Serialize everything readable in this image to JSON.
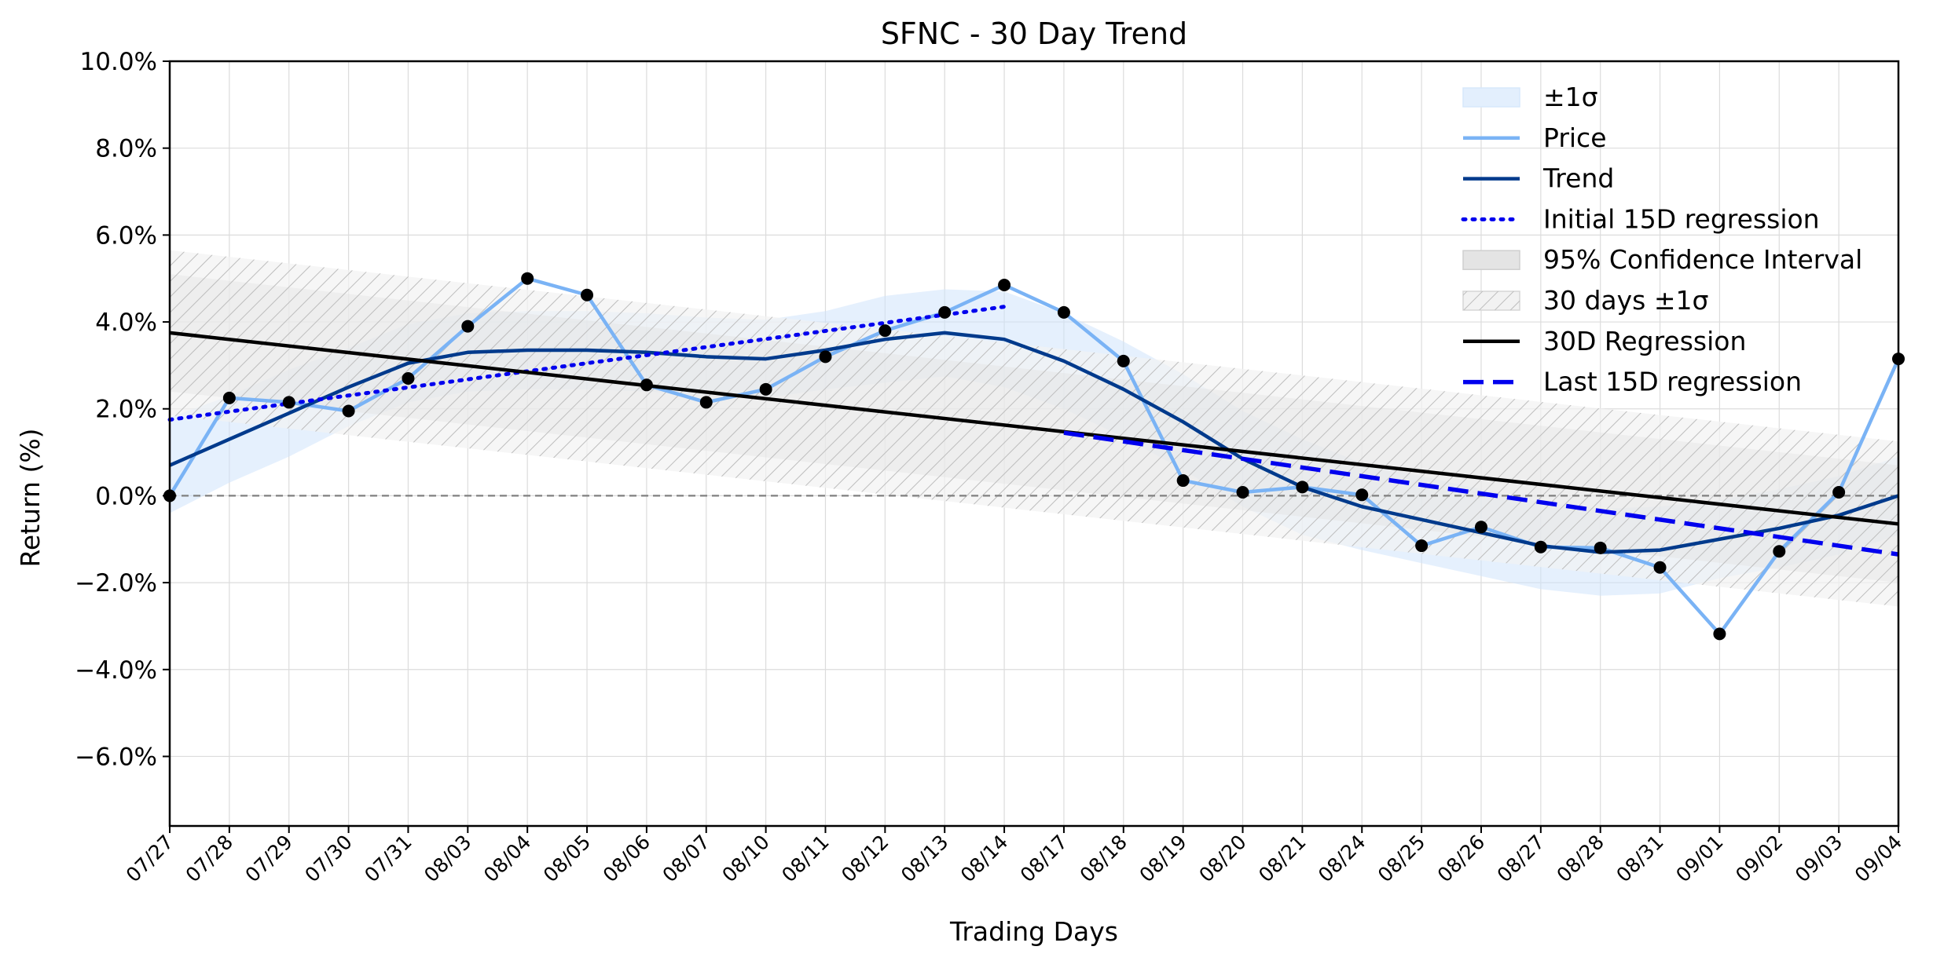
{
  "chart_data": {
    "type": "line",
    "title": "SFNC - 30 Day Trend",
    "xlabel": "Trading Days",
    "ylabel": "Return (%)",
    "ylim": [
      -7.6,
      10.0
    ],
    "grid": true,
    "legend_position": "top-right",
    "categories": [
      "07/27",
      "07/28",
      "07/29",
      "07/30",
      "07/31",
      "08/03",
      "08/04",
      "08/05",
      "08/06",
      "08/07",
      "08/10",
      "08/11",
      "08/12",
      "08/13",
      "08/14",
      "08/17",
      "08/18",
      "08/19",
      "08/20",
      "08/21",
      "08/24",
      "08/25",
      "08/26",
      "08/27",
      "08/28",
      "08/31",
      "09/01",
      "09/02",
      "09/03",
      "09/04"
    ],
    "y_ticks": [
      {
        "value": -6.0,
        "label": "−6.0%"
      },
      {
        "value": -4.0,
        "label": "−4.0%"
      },
      {
        "value": -2.0,
        "label": "−2.0%"
      },
      {
        "value": 0.0,
        "label": "0.0%"
      },
      {
        "value": 2.0,
        "label": "2.0%"
      },
      {
        "value": 4.0,
        "label": "4.0%"
      },
      {
        "value": 6.0,
        "label": "6.0%"
      },
      {
        "value": 8.0,
        "label": "8.0%"
      },
      {
        "value": 10.0,
        "label": "10.0%"
      }
    ],
    "series": [
      {
        "name": "Price",
        "color": "#7ab3f5",
        "style": "solid",
        "values": [
          0.0,
          2.25,
          2.15,
          1.95,
          2.7,
          3.9,
          5.0,
          4.62,
          2.55,
          2.15,
          2.45,
          3.2,
          3.8,
          4.22,
          4.85,
          4.22,
          3.1,
          0.35,
          0.08,
          0.2,
          0.02,
          -1.15,
          -0.72,
          -1.18,
          -1.2,
          -1.65,
          -3.18,
          -1.28,
          0.08,
          3.15
        ]
      },
      {
        "name": "Trend",
        "color": "#003a8c",
        "style": "solid",
        "values": [
          0.7,
          1.3,
          1.9,
          2.5,
          3.05,
          3.3,
          3.35,
          3.35,
          3.3,
          3.2,
          3.15,
          3.35,
          3.6,
          3.75,
          3.6,
          3.1,
          2.45,
          1.7,
          0.85,
          0.2,
          -0.25,
          -0.55,
          -0.85,
          -1.15,
          -1.3,
          -1.25,
          -1.0,
          -0.75,
          -0.45,
          0.0
        ]
      },
      {
        "name": "Initial 15D regression",
        "color": "#0000ee",
        "style": "dotted",
        "x_range": [
          0,
          14
        ],
        "y_range": [
          1.75,
          4.35
        ]
      },
      {
        "name": "30D Regression",
        "color": "#000000",
        "style": "solid",
        "x_range": [
          0,
          29
        ],
        "y_range": [
          3.75,
          -0.65
        ]
      },
      {
        "name": "Last 15D regression",
        "color": "#0000ee",
        "style": "dashed",
        "x_range": [
          15,
          29
        ],
        "y_range": [
          1.45,
          -1.35
        ]
      }
    ],
    "bands": [
      {
        "name": "±1σ",
        "around": "Trend",
        "width": [
          1.1,
          1.0,
          1.0,
          0.9,
          0.9,
          0.9,
          0.9,
          0.9,
          0.9,
          0.9,
          0.9,
          0.9,
          1.0,
          1.0,
          1.1,
          1.1,
          1.1,
          1.1,
          1.1,
          1.1,
          1.0,
          1.0,
          1.0,
          1.0,
          1.0,
          1.0,
          0.9,
          0.9,
          0.9,
          0.9
        ],
        "color": "#cfe4fb"
      },
      {
        "name": "95% Confidence Interval",
        "around": "30D Regression",
        "half_width": 1.35,
        "color": "#b0b0b0"
      },
      {
        "name": "30 days ±1σ",
        "around": "30D Regression",
        "half_width": 1.9,
        "color": "#c8c8c8",
        "hatched": true
      }
    ],
    "zero_line": true,
    "legend": [
      "±1σ",
      "Price",
      "Trend",
      "Initial 15D regression",
      "95% Confidence Interval",
      "30 days ±1σ",
      "30D Regression",
      "Last 15D regression"
    ]
  }
}
